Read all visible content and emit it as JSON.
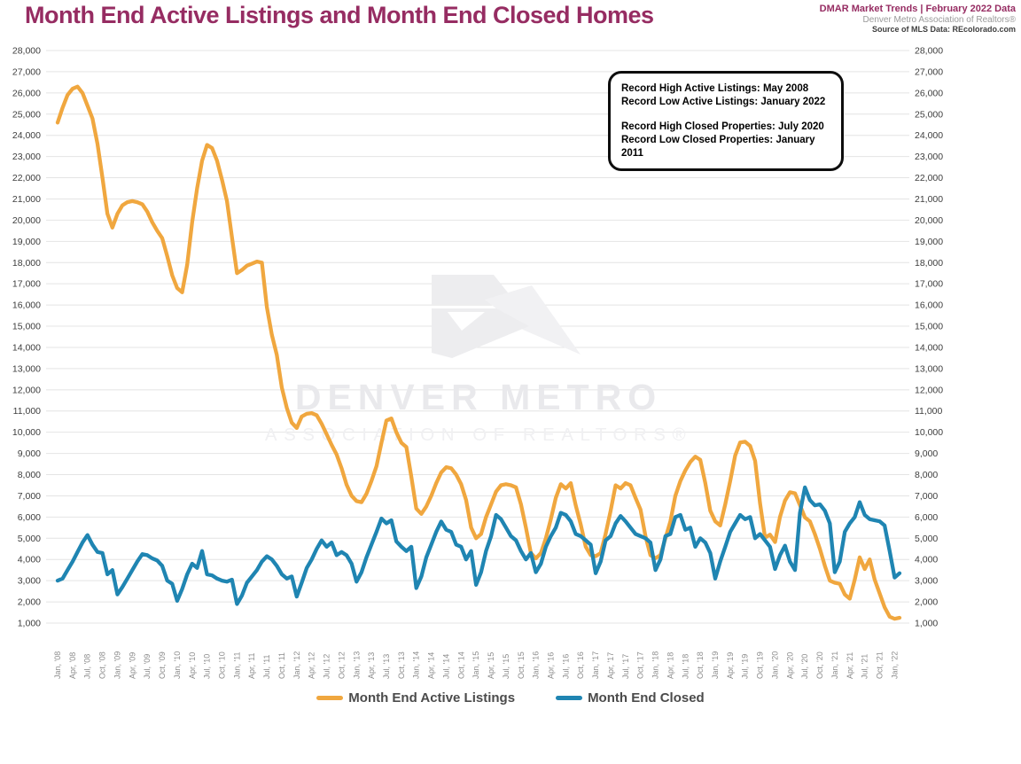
{
  "header": {
    "title": "Month End Active Listings and Month End Closed Homes",
    "meta_line1": "DMAR Market Trends | February 2022 Data",
    "meta_line2": "Denver Metro Association of Realtors®",
    "meta_line3": "Source of MLS Data: REcolorado.com"
  },
  "callout": {
    "line1": "Record High Active Listings: May 2008",
    "line2": "Record Low Active Listings: January 2022",
    "line3": "Record High Closed Properties: July 2020",
    "line4": "Record Low Closed Properties: January 2011"
  },
  "watermark": {
    "line1": "DENVER METRO",
    "line2": "ASSOCIATION OF REALTORS®"
  },
  "legend": {
    "active_label": "Month End Active Listings",
    "closed_label": "Month End Closed"
  },
  "colors": {
    "title": "#962c62",
    "active_line": "#F0A73F",
    "closed_line": "#1F85B2",
    "gridline": "#e4e4e4",
    "y_label": "#3d3d3d",
    "x_label": "#8c8c8c",
    "watermark": "#e9e9ec"
  },
  "chart_data": {
    "type": "line",
    "title": "Month End Active Listings and Month End Closed Homes",
    "xlabel": "",
    "ylabel": "",
    "ylim": [
      1000,
      28000
    ],
    "y_step": 1000,
    "grid": "horizontal",
    "legend_position": "bottom",
    "x_start": "Jan 2008",
    "x_end": "Feb 2022",
    "months_per_tick": 3,
    "x_tick_labels": [
      "Jan, '08",
      "Apr, '08",
      "Jul, '08",
      "Oct, '08",
      "Jan, '09",
      "Apr, '09",
      "Jul, '09",
      "Oct, '09",
      "Jan, '10",
      "Apr, '10",
      "Jul, '10",
      "Oct, '10",
      "Jan, '11",
      "Apr, '11",
      "Jul, '11",
      "Oct, '11",
      "Jan, '12",
      "Apr, '12",
      "Jul, '12",
      "Oct, '12",
      "Jan, '13",
      "Apr, '13",
      "Jul, '13",
      "Oct, '13",
      "Jan, '14",
      "Apr, '14",
      "Jul, '14",
      "Oct, '14",
      "Jan, '15",
      "Apr, '15",
      "Jul, '15",
      "Oct, '15",
      "Jan, '16",
      "Apr, '16",
      "Jul, '16",
      "Oct, '16",
      "Jan, '17",
      "Apr, '17",
      "Jul, '17",
      "Oct, '17",
      "Jan, '18",
      "Apr, '18",
      "Jul, '18",
      "Oct, '18",
      "Jan, '19",
      "Apr, '19",
      "Jul, '19",
      "Oct, '19",
      "Jan, '20",
      "Apr, '20",
      "Jul, '20",
      "Oct, '20",
      "Jan, '21",
      "Apr, '21",
      "Jul, '21",
      "Oct, '21",
      "Jan, '22"
    ],
    "series": [
      {
        "name": "Month End Active Listings",
        "color": "#F0A73F",
        "values": [
          24600,
          25300,
          25900,
          26200,
          26300,
          26000,
          25400,
          24800,
          23600,
          22000,
          20300,
          19650,
          20300,
          20700,
          20850,
          20900,
          20850,
          20750,
          20400,
          19900,
          19500,
          19150,
          18300,
          17400,
          16800,
          16600,
          17900,
          19900,
          21500,
          22800,
          23550,
          23400,
          22800,
          21900,
          20900,
          19200,
          17500,
          17650,
          17850,
          17950,
          18050,
          18000,
          15900,
          14600,
          13650,
          12100,
          11150,
          10450,
          10200,
          10740,
          10870,
          10900,
          10800,
          10400,
          9900,
          9400,
          8950,
          8300,
          7530,
          7000,
          6750,
          6700,
          7100,
          7700,
          8400,
          9500,
          10550,
          10650,
          10000,
          9500,
          9300,
          7900,
          6400,
          6150,
          6500,
          7000,
          7600,
          8100,
          8350,
          8300,
          8000,
          7550,
          6800,
          5500,
          5000,
          5200,
          6000,
          6600,
          7200,
          7500,
          7550,
          7500,
          7400,
          6600,
          5500,
          4300,
          4050,
          4300,
          5000,
          5900,
          6900,
          7550,
          7350,
          7600,
          6550,
          5650,
          4600,
          4200,
          4150,
          4300,
          5200,
          6300,
          7500,
          7350,
          7600,
          7500,
          6900,
          6350,
          5100,
          4200,
          4060,
          4200,
          5000,
          5800,
          7000,
          7700,
          8200,
          8600,
          8850,
          8700,
          7600,
          6300,
          5800,
          5600,
          6600,
          7700,
          8900,
          9520,
          9550,
          9350,
          8650,
          6640,
          5030,
          5170,
          4820,
          6010,
          6770,
          7170,
          7120,
          6560,
          5980,
          5800,
          5200,
          4500,
          3700,
          3000,
          2900,
          2850,
          2350,
          2150,
          3050,
          4100,
          3550,
          4000,
          3050,
          2400,
          1750,
          1300,
          1200,
          1250
        ]
      },
      {
        "name": "Month End Closed",
        "color": "#1F85B2",
        "values": [
          3000,
          3100,
          3500,
          3900,
          4350,
          4800,
          5150,
          4700,
          4350,
          4300,
          3300,
          3500,
          2350,
          2700,
          3100,
          3500,
          3900,
          4250,
          4200,
          4050,
          3950,
          3700,
          3000,
          2850,
          2050,
          2600,
          3300,
          3800,
          3600,
          4400,
          3300,
          3250,
          3100,
          3000,
          2950,
          3050,
          1900,
          2300,
          2900,
          3200,
          3500,
          3900,
          4150,
          4000,
          3700,
          3300,
          3100,
          3200,
          2250,
          2900,
          3600,
          4000,
          4500,
          4900,
          4600,
          4800,
          4200,
          4350,
          4200,
          3800,
          2950,
          3400,
          4100,
          4700,
          5300,
          5930,
          5700,
          5850,
          4850,
          4600,
          4400,
          4600,
          2650,
          3200,
          4100,
          4700,
          5300,
          5790,
          5400,
          5300,
          4700,
          4600,
          4000,
          4400,
          2800,
          3400,
          4400,
          5100,
          6100,
          5900,
          5500,
          5100,
          4900,
          4400,
          4000,
          4300,
          3400,
          3800,
          4600,
          5100,
          5500,
          6200,
          6100,
          5800,
          5200,
          5100,
          4900,
          4700,
          3350,
          3900,
          4900,
          5100,
          5700,
          6050,
          5800,
          5500,
          5200,
          5100,
          5000,
          4800,
          3500,
          4000,
          5100,
          5200,
          6000,
          6100,
          5400,
          5500,
          4600,
          5000,
          4800,
          4300,
          3100,
          3900,
          4600,
          5300,
          5700,
          6100,
          5900,
          6000,
          5000,
          5200,
          4900,
          4600,
          3550,
          4200,
          4650,
          3900,
          3500,
          6200,
          7400,
          6800,
          6550,
          6600,
          6300,
          5700,
          3400,
          3900,
          5300,
          5700,
          6000,
          6700,
          6100,
          5900,
          5850,
          5800,
          5600,
          4400,
          3150,
          3350
        ]
      }
    ]
  }
}
